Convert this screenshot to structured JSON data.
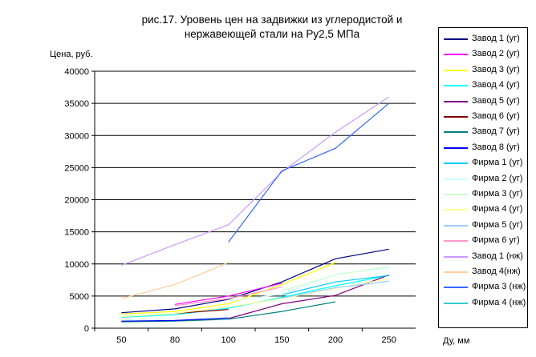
{
  "chart_data": {
    "type": "line",
    "title_line1": "рис.17. Уровень цен на задвижки из углеродистой и",
    "title_line2": "нержавеющей стали на Ру2,5 МПа",
    "ylabel": "Цена, руб.",
    "xlabel": "Ду, мм",
    "categories": [
      "50",
      "80",
      "100",
      "150",
      "200",
      "250"
    ],
    "ylim": [
      0,
      40000
    ],
    "yticks": [
      0,
      5000,
      10000,
      15000,
      20000,
      25000,
      30000,
      35000,
      40000
    ],
    "grid": true,
    "legend_position": "right",
    "series": [
      {
        "name": "Завод 1 (уг)",
        "color": "#000080",
        "values": [
          2400,
          3000,
          4500,
          7200,
          10800,
          12300
        ]
      },
      {
        "name": "Завод 2 (уг)",
        "color": "#ff00ff",
        "values": [
          null,
          3700,
          5000,
          7000,
          null,
          null
        ]
      },
      {
        "name": "Завод 3 (уг)",
        "color": "#ffff00",
        "values": [
          2200,
          2600,
          3800,
          6800,
          10200,
          null
        ]
      },
      {
        "name": "Завод 4 (уг)",
        "color": "#00ffff",
        "values": [
          1700,
          2100,
          3100,
          4800,
          6600,
          8200
        ]
      },
      {
        "name": "Завод 5 (уг)",
        "color": "#800080",
        "values": [
          null,
          null,
          1500,
          3800,
          5100,
          8300
        ]
      },
      {
        "name": "Завод 6 (уг)",
        "color": "#800000",
        "values": [
          null,
          2300,
          2900,
          null,
          null,
          null
        ]
      },
      {
        "name": "Завод 7 (уг)",
        "color": "#008080",
        "values": [
          1000,
          1100,
          1400,
          2600,
          4100,
          null
        ]
      },
      {
        "name": "Завод 8 (уг)",
        "color": "#0000ff",
        "values": [
          1100,
          1200,
          1600,
          null,
          null,
          null
        ]
      },
      {
        "name": "Фирма 1 (уг)",
        "color": "#00ccff",
        "values": [
          null,
          null,
          null,
          5200,
          7200,
          8200
        ]
      },
      {
        "name": "Фирма 2 (уг)",
        "color": "#ccffff",
        "values": [
          null,
          null,
          4200,
          5300,
          8400,
          9400
        ]
      },
      {
        "name": "Фирма 3 (уг)",
        "color": "#ccffcc",
        "values": [
          null,
          null,
          null,
          5800,
          8300,
          9600
        ]
      },
      {
        "name": "Фирма 4 (уг)",
        "color": "#ffff99",
        "values": [
          1800,
          2300,
          3300,
          4600,
          6200,
          7700
        ]
      },
      {
        "name": "Фирма 5 (уг)",
        "color": "#99ccff",
        "values": [
          null,
          null,
          null,
          4700,
          6300,
          7300
        ]
      },
      {
        "name": "Фирма 6 уг)",
        "color": "#ff99cc",
        "values": [
          null,
          3500,
          4600,
          6400,
          null,
          null
        ]
      },
      {
        "name": "Завод 1 (нж)",
        "color": "#cc99ff",
        "values": [
          9800,
          13000,
          16100,
          24300,
          30500,
          36000
        ]
      },
      {
        "name": "Завод 4(нж)",
        "color": "#ffcc99",
        "values": [
          4600,
          6800,
          10200,
          null,
          null,
          null
        ]
      },
      {
        "name": "Фирма 3 (нж)",
        "color": "#3366ff",
        "values": [
          null,
          null,
          13400,
          24500,
          28000,
          35000
        ]
      },
      {
        "name": "Фирма 4 (нж)",
        "color": "#33cccc",
        "values": [
          null,
          null,
          null,
          null,
          null,
          null
        ]
      }
    ]
  }
}
